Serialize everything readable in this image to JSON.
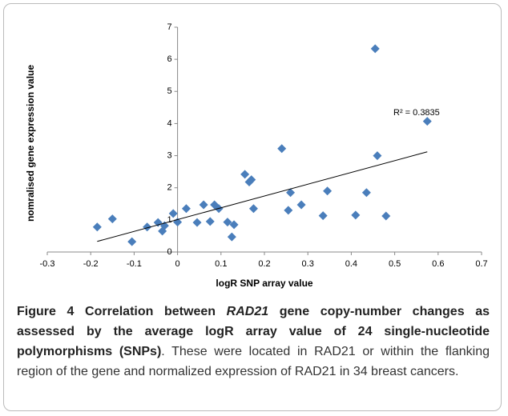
{
  "chart_data": {
    "type": "scatter",
    "x_label": "logR SNP array value",
    "y_label": "nomralised gene expression value",
    "annotation": "R² = 0.3835",
    "color": "#4a7ebb",
    "x": [
      -0.185,
      -0.15,
      -0.105,
      -0.07,
      -0.045,
      -0.035,
      -0.03,
      -0.01,
      0.0,
      0.02,
      0.045,
      0.06,
      0.075,
      0.085,
      0.095,
      0.115,
      0.125,
      0.13,
      0.155,
      0.165,
      0.17,
      0.175,
      0.24,
      0.255,
      0.26,
      0.285,
      0.335,
      0.345,
      0.41,
      0.435,
      0.455,
      0.46,
      0.48,
      0.575
    ],
    "values": [
      0.78,
      1.03,
      0.32,
      0.78,
      0.92,
      0.65,
      0.82,
      1.2,
      0.93,
      1.35,
      0.92,
      1.47,
      0.95,
      1.47,
      1.35,
      0.93,
      0.47,
      0.85,
      2.42,
      2.18,
      2.25,
      1.35,
      3.22,
      1.3,
      1.85,
      1.47,
      1.13,
      1.9,
      1.15,
      1.85,
      6.33,
      3.0,
      1.12,
      4.07
    ],
    "trendline": {
      "x": [
        -0.185,
        0.575
      ],
      "y": [
        0.33,
        3.12
      ]
    },
    "xlim": [
      -0.3,
      0.7
    ],
    "xticks": [
      -0.3,
      -0.2,
      -0.1,
      0,
      0.1,
      0.2,
      0.3,
      0.4,
      0.5,
      0.6,
      0.7
    ],
    "ylim": [
      0,
      7
    ],
    "yticks": [
      0,
      1,
      2,
      3,
      4,
      5,
      6,
      7
    ],
    "grid": false
  },
  "caption": {
    "figure": "Figure 4",
    "title_start": "Correlation between",
    "gene": "RAD21",
    "title_end": "gene copy-number changes as assessed by the average logR array value of 24 single-nucleotide polymorphisms (SNPs)",
    "text": ". These were located in RAD21 or within the flanking region of the gene and normalized expression of RAD21 in 34 breast cancers."
  }
}
